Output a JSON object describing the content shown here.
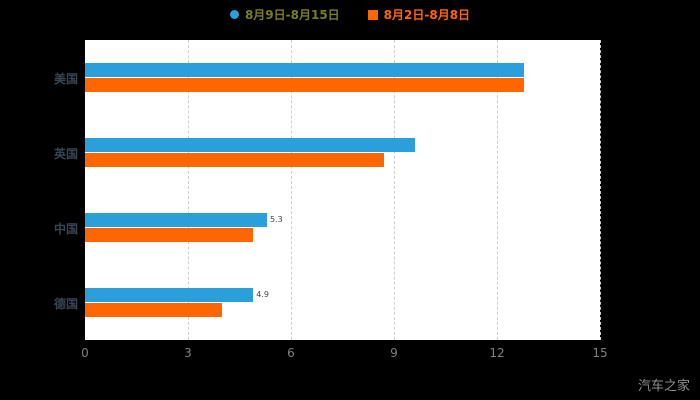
{
  "legend": {
    "items": [
      {
        "label": "8月9日-8月15日",
        "marker": "dot",
        "marker_color": "#2b9fd9",
        "text_color": "#7a7d20"
      },
      {
        "label": "8月2日-8月8日",
        "marker": "square",
        "marker_color": "#ff6600",
        "text_color": "#ff6600"
      }
    ]
  },
  "watermark": "汽车之家",
  "colors": {
    "background": "#000000",
    "plot_background": "#ffffff",
    "gridline": "#cfcfcf",
    "tick_text": "#7f7f7f",
    "category_text": "#3a4554"
  },
  "chart_data": {
    "type": "bar",
    "orientation": "horizontal",
    "title": "",
    "xlabel": "",
    "ylabel": "",
    "categories": [
      "美国",
      "英国",
      "中国",
      "德国"
    ],
    "series": [
      {
        "name": "8月9日-8月15日",
        "color": "#2b9fd9",
        "values": [
          12.8,
          9.6,
          5.3,
          4.9
        ]
      },
      {
        "name": "8月2日-8月8日",
        "color": "#ff6600",
        "values": [
          12.8,
          8.7,
          4.9,
          4.0
        ]
      }
    ],
    "bar_labels": [
      {
        "category_index": 2,
        "series_index": 0,
        "text": "5.3"
      },
      {
        "category_index": 3,
        "series_index": 0,
        "text": "4.9"
      }
    ],
    "xlim": [
      0,
      15
    ],
    "xticks": [
      0,
      3,
      6,
      9,
      12,
      15
    ],
    "grid": "dashed-vertical",
    "legend_position": "top"
  }
}
